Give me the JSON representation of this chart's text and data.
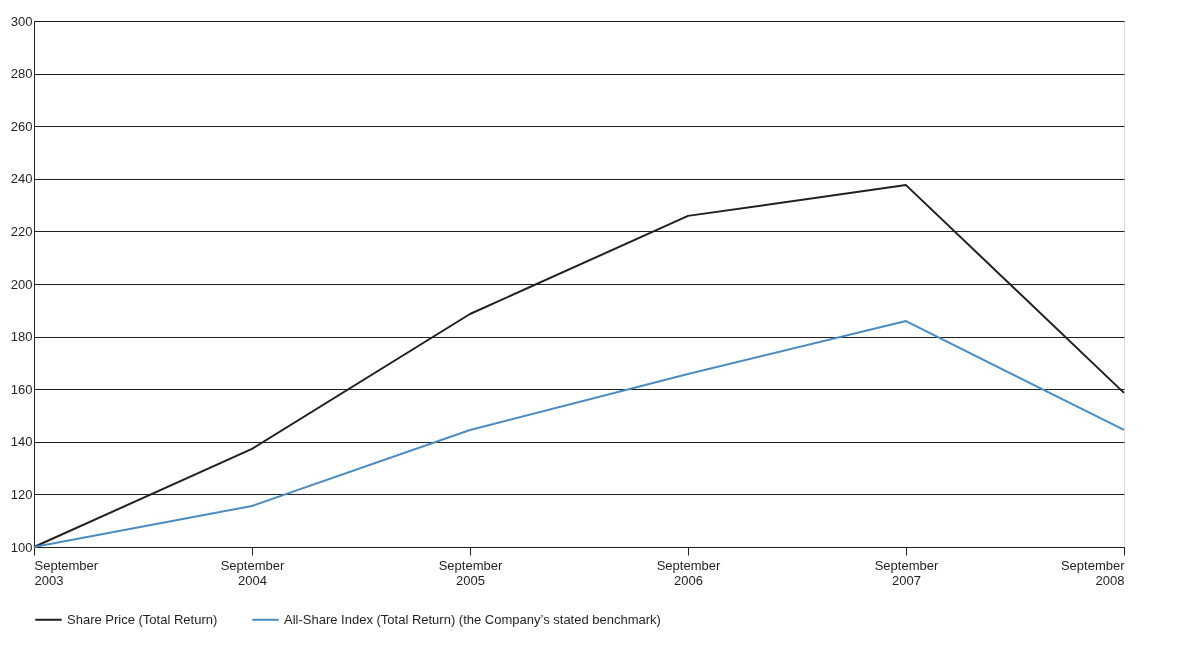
{
  "chart_data": {
    "type": "line",
    "categories": [
      "September 2003",
      "September 2004",
      "September 2005",
      "September 2006",
      "September 2007",
      "September 2008"
    ],
    "series": [
      {
        "name": "Share Price (Total Return)",
        "color": "#231f20",
        "values": [
          100,
          137.3,
          188.6,
          225.9,
          237.6,
          158.6
        ]
      },
      {
        "name": "All-Share Index (Total Return) (the Company’s stated benchmark)",
        "color": "#4a8bc2",
        "values": [
          100,
          115.6,
          144.5,
          165.8,
          185.9,
          144.5
        ]
      }
    ],
    "ylim": [
      100,
      300
    ],
    "yticks": [
      100,
      120,
      140,
      160,
      180,
      200,
      220,
      240,
      260,
      280,
      300
    ],
    "grid": "y",
    "legend": "bottom",
    "marker": "none",
    "line_style": "solid"
  }
}
